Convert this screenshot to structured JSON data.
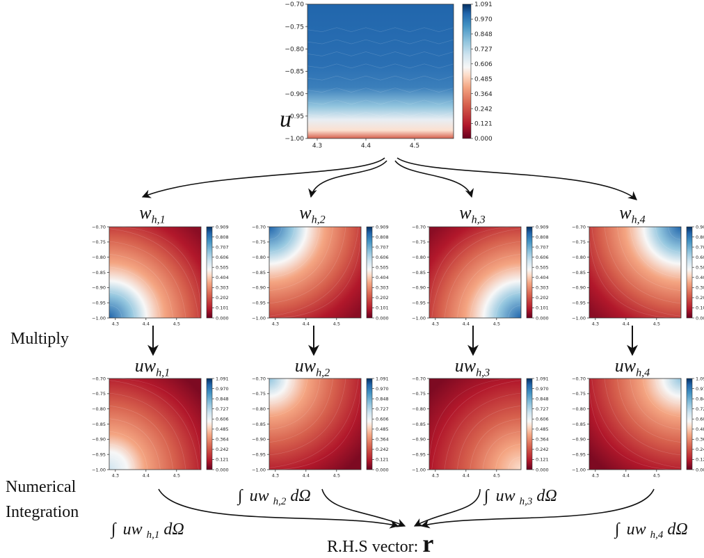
{
  "colors": {
    "cmap": [
      "#67001f",
      "#b2182b",
      "#d6604d",
      "#f4a582",
      "#fddbc7",
      "#f7f7f7",
      "#d1e5f0",
      "#92c5de",
      "#4393c3",
      "#2166ac",
      "#053061"
    ],
    "arrow": "#111111",
    "text": "#111111"
  },
  "left_labels": {
    "multiply": "Multiply",
    "numerical_line1": "Numerical",
    "numerical_line2": "Integration"
  },
  "top_panel": {
    "symbol": "u",
    "y_ticks": [
      "−0.70",
      "−0.75",
      "−0.80",
      "−0.85",
      "−0.90",
      "−0.95",
      "−1.00"
    ],
    "x_ticks": [
      "4.3",
      "4.4",
      "4.5"
    ],
    "colorbar_ticks": [
      "1.091",
      "0.970",
      "0.848",
      "0.727",
      "0.606",
      "0.485",
      "0.364",
      "0.242",
      "0.121",
      "0.000"
    ]
  },
  "w_panels": {
    "label_base": "w",
    "label_subs": [
      "h,1",
      "h,2",
      "h,3",
      "h,4"
    ],
    "y_ticks": [
      "−0.70",
      "−0.75",
      "−0.80",
      "−0.85",
      "−0.90",
      "−0.95",
      "−1.00"
    ],
    "x_ticks": [
      "4.3",
      "4.4",
      "4.5"
    ],
    "colorbar_ticks": [
      "0.909",
      "0.808",
      "0.707",
      "0.606",
      "0.505",
      "0.404",
      "0.303",
      "0.202",
      "0.101",
      "0.000"
    ]
  },
  "uw_panels": {
    "label_base": "uw",
    "label_subs": [
      "h,1",
      "h,2",
      "h,3",
      "h,4"
    ],
    "y_ticks": [
      "−0.70",
      "−0.75",
      "−0.80",
      "−0.85",
      "−0.90",
      "−0.95",
      "−1.00"
    ],
    "x_ticks": [
      "4.3",
      "4.4",
      "4.5"
    ],
    "colorbar_ticks": [
      "1.091",
      "0.970",
      "0.848",
      "0.727",
      "0.606",
      "0.485",
      "0.364",
      "0.242",
      "0.121",
      "0.000"
    ]
  },
  "integrals": {
    "prefix": "∫",
    "integrand": "uw",
    "subs": [
      "h,1",
      "h,2",
      "h,3",
      "h,4"
    ],
    "measure": "dΩ"
  },
  "result": {
    "label": "R.H.S vector: ",
    "symbol": "r"
  }
}
